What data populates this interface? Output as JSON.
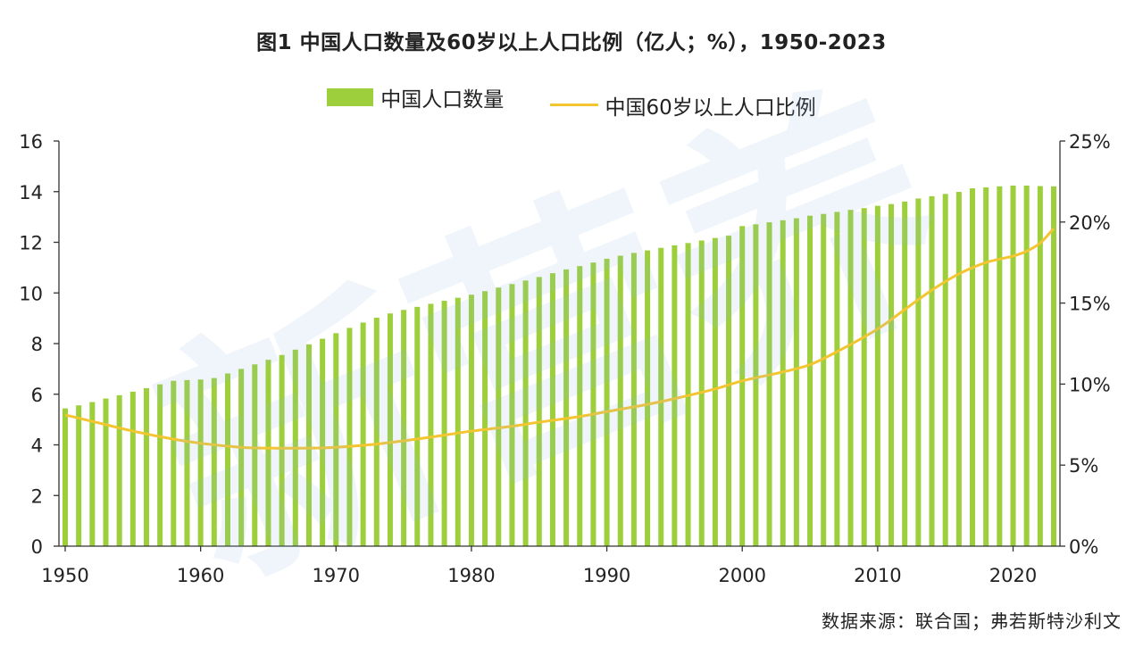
{
  "title": "图1 中国人口数量及60岁以上人口比例（亿人；%），1950-2023",
  "source": "数据来源：联合国；弗若斯特沙利文",
  "watermark": "新营养",
  "colors": {
    "bar": "#9dce3c",
    "line": "#f2c531",
    "axis": "#333333"
  },
  "chart_data": {
    "type": "bar+line",
    "title": "图1 中国人口数量及60岁以上人口比例（亿人；%），1950-2023",
    "legend_position": "top",
    "x": [
      1950,
      1951,
      1952,
      1953,
      1954,
      1955,
      1956,
      1957,
      1958,
      1959,
      1960,
      1961,
      1962,
      1963,
      1964,
      1965,
      1966,
      1967,
      1968,
      1969,
      1970,
      1971,
      1972,
      1973,
      1974,
      1975,
      1976,
      1977,
      1978,
      1979,
      1980,
      1981,
      1982,
      1983,
      1984,
      1985,
      1986,
      1987,
      1988,
      1989,
      1990,
      1991,
      1992,
      1993,
      1994,
      1995,
      1996,
      1997,
      1998,
      1999,
      2000,
      2001,
      2002,
      2003,
      2004,
      2005,
      2006,
      2007,
      2008,
      2009,
      2010,
      2011,
      2012,
      2013,
      2014,
      2015,
      2016,
      2017,
      2018,
      2019,
      2020,
      2021,
      2022,
      2023
    ],
    "x_ticks": [
      "1950",
      "1960",
      "1970",
      "1980",
      "1990",
      "2000",
      "2010",
      "2020"
    ],
    "y_left": {
      "ticks": [
        "0",
        "2",
        "4",
        "6",
        "8",
        "10",
        "12",
        "14",
        "16"
      ],
      "range": [
        0,
        16
      ]
    },
    "y_right": {
      "ticks": [
        "0%",
        "5%",
        "10%",
        "15%",
        "20%",
        "25%"
      ],
      "range": [
        0,
        25
      ]
    },
    "series": [
      {
        "name": "中国人口数量",
        "type": "bar",
        "axis": "left",
        "values": [
          5.44,
          5.56,
          5.69,
          5.83,
          5.96,
          6.1,
          6.24,
          6.39,
          6.53,
          6.56,
          6.58,
          6.64,
          6.82,
          7.0,
          7.18,
          7.36,
          7.55,
          7.76,
          7.97,
          8.19,
          8.41,
          8.62,
          8.83,
          9.02,
          9.19,
          9.33,
          9.45,
          9.57,
          9.69,
          9.81,
          9.93,
          10.07,
          10.21,
          10.35,
          10.49,
          10.63,
          10.78,
          10.93,
          11.06,
          11.2,
          11.35,
          11.47,
          11.58,
          11.68,
          11.78,
          11.88,
          11.97,
          12.07,
          12.17,
          12.26,
          12.64,
          12.71,
          12.79,
          12.87,
          12.95,
          13.05,
          13.12,
          13.2,
          13.28,
          13.35,
          13.44,
          13.51,
          13.61,
          13.73,
          13.82,
          13.91,
          13.99,
          14.13,
          14.17,
          14.21,
          14.24,
          14.24,
          14.22,
          14.21
        ]
      },
      {
        "name": "中国60岁以上人口比例",
        "type": "line",
        "axis": "right",
        "x": [
          1950,
          1952,
          1955,
          1958,
          1960,
          1963,
          1965,
          1968,
          1970,
          1973,
          1975,
          1978,
          1980,
          1983,
          1985,
          1988,
          1990,
          1993,
          1995,
          1998,
          2000,
          2003,
          2005,
          2007,
          2010,
          2012,
          2014,
          2016,
          2018,
          2020,
          2021,
          2022,
          2023
        ],
        "values": [
          8.1,
          7.7,
          7.1,
          6.6,
          6.35,
          6.1,
          6.05,
          6.05,
          6.1,
          6.3,
          6.5,
          6.85,
          7.1,
          7.4,
          7.65,
          8.0,
          8.3,
          8.75,
          9.1,
          9.7,
          10.2,
          10.75,
          11.2,
          12.0,
          13.4,
          14.6,
          15.8,
          16.8,
          17.5,
          17.9,
          18.2,
          18.7,
          19.6
        ]
      }
    ]
  }
}
